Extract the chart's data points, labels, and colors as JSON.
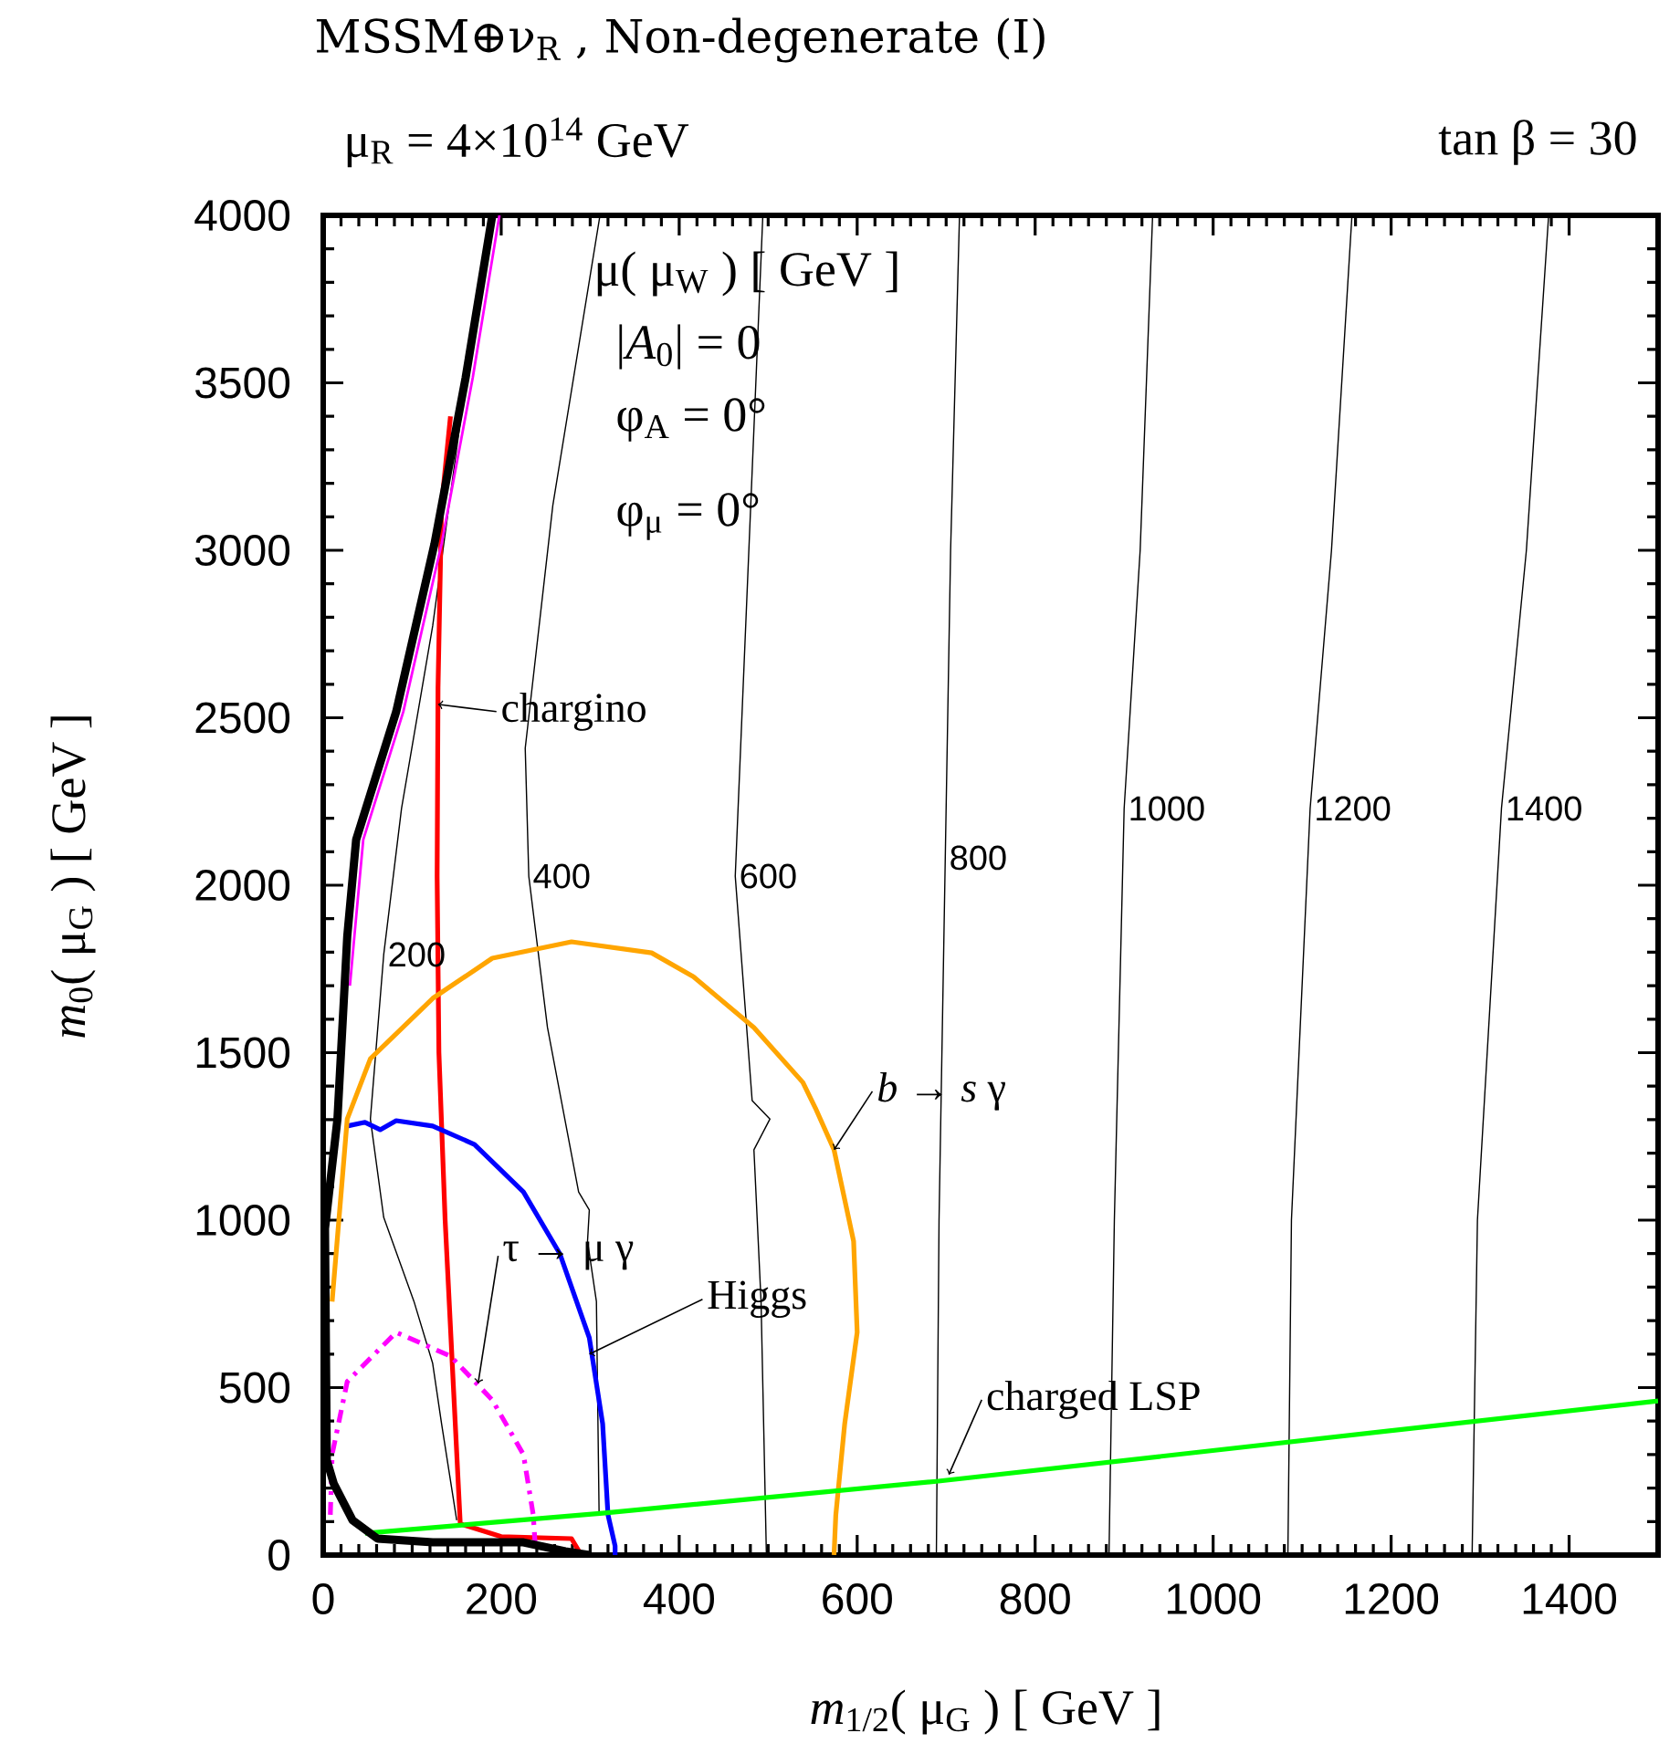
{
  "chart_data": {
    "type": "line",
    "title": "MSSM⊕ν$_{R}$ , Non-degenerate (I)",
    "subtitle": "μ$_{R}$ = 4×10$^{14}$ GeV",
    "xlabel": "*m*$_{1/2}$( μ$_{G}$ ) [ GeV ]",
    "ylabel": "*m*$_{0}$( μ$_{G}$ ) [ GeV ]",
    "xlim": [
      0,
      1500
    ],
    "ylim": [
      0,
      4000
    ],
    "xticks": [
      0,
      200,
      400,
      600,
      800,
      1000,
      1200,
      1400
    ],
    "yticks": [
      0,
      500,
      1000,
      1500,
      2000,
      2500,
      3000,
      3500,
      4000
    ],
    "series": [
      {
        "color": "#000000",
        "x": [
          160,
          123,
          88,
          68,
          53,
          68,
          102,
          123,
          133,
          150
        ],
        "values": [
          3500,
          2774,
          2229,
          1793,
          1302,
          1008,
          757,
          572,
          392,
          104
        ]
      },
      {
        "color": "#000000",
        "x": [
          311,
          258,
          227,
          231,
          252,
          287,
          299,
          297,
          307,
          310
        ],
        "values": [
          4000,
          3134,
          2409,
          2027,
          1575,
          1084,
          1030,
          937,
          757,
          125
        ]
      },
      {
        "color": "#000000",
        "x": [
          494,
          463,
          482,
          502,
          484,
          492,
          498
        ],
        "values": [
          4000,
          2027,
          1357,
          1302,
          1210,
          757,
          0
        ]
      },
      {
        "color": "#000000",
        "x": [
          715,
          705,
          699,
          692,
          689
        ],
        "values": [
          4000,
          3000,
          2082,
          1000,
          0
        ]
      },
      {
        "color": "#000000",
        "x": [
          932,
          918,
          900,
          889,
          883
        ],
        "values": [
          4000,
          3000,
          2229,
          1000,
          0
        ]
      },
      {
        "color": "#000000",
        "x": [
          1156,
          1133,
          1109,
          1088,
          1084
        ],
        "values": [
          4000,
          3000,
          2229,
          1000,
          0
        ]
      },
      {
        "color": "#000000",
        "x": [
          1377,
          1352,
          1324,
          1297,
          1291
        ],
        "values": [
          4000,
          3000,
          2229,
          1000,
          0
        ]
      },
      {
        "color": "#ff0000",
        "x": [
          143,
          133,
          129,
          128,
          130,
          137,
          145,
          154,
          200,
          279,
          290
        ],
        "values": [
          3400,
          3134,
          2589,
          2027,
          1500,
          1000,
          572,
          93,
          55,
          49,
          0
        ]
      },
      {
        "color": "#0000ff",
        "x": [
          27,
          47,
          64,
          82,
          123,
          170,
          225,
          266,
          299,
          314,
          320,
          328,
          328
        ],
        "values": [
          1281,
          1292,
          1270,
          1297,
          1281,
          1226,
          1084,
          899,
          649,
          392,
          120,
          27,
          0
        ]
      },
      {
        "color": "#ffa500",
        "x": [
          10,
          27,
          53,
          123,
          190,
          279,
          369,
          416,
          484,
          539,
          553,
          574,
          596,
          600,
          586,
          576,
          574
        ],
        "values": [
          757,
          1302,
          1482,
          1662,
          1782,
          1831,
          1798,
          1727,
          1575,
          1411,
          1335,
          1210,
          937,
          665,
          392,
          120,
          0
        ]
      },
      {
        "color": "#ff00ff",
        "line_style": "dashdotted",
        "x": [
          8,
          10,
          27,
          82,
          143,
          190,
          225,
          236,
          238
        ],
        "values": [
          120,
          300,
          518,
          665,
          594,
          463,
          300,
          120,
          38
        ]
      },
      {
        "color": "#ff00ff",
        "x": [
          198,
          168,
          133,
          90,
          45,
          35,
          30
        ],
        "values": [
          4000,
          3515,
          3019,
          2518,
          2136,
          1847,
          1700
        ]
      },
      {
        "color": "#00ff00",
        "x": [
          47,
          314,
          689,
          1500
        ],
        "values": [
          65,
          125,
          220,
          460
        ]
      },
      {
        "color": "#000000",
        "x": [
          190,
          160,
          125,
          82,
          37,
          27,
          16,
          2,
          4,
          12,
          33,
          61,
          123,
          225,
          272,
          299
        ],
        "values": [
          4000,
          3515,
          3019,
          2518,
          2136,
          1847,
          1302,
          975,
          283,
          212,
          104,
          49,
          38,
          38,
          11,
          0
        ]
      }
    ],
    "annotations": [
      "tan β = 30",
      "μ( μ$_{W}$ ) [ GeV ]",
      "|*A*$_{0}$| = 0",
      "φ$_{A}$ = 0°",
      "φ$_{μ}$ = 0°",
      {
        "text": "200",
        "x": 68,
        "y": 1793
      },
      {
        "text": "400",
        "x": 231,
        "y": 2027
      },
      {
        "text": "600",
        "x": 463,
        "y": 2027
      },
      {
        "text": "800",
        "x": 699,
        "y": 2082
      },
      {
        "text": "1000",
        "x": 900,
        "y": 2229
      },
      {
        "text": "1200",
        "x": 1109,
        "y": 2229
      },
      {
        "text": "1400",
        "x": 1324,
        "y": 2229
      },
      {
        "text": "chargino",
        "x": 129,
        "y": 2540
      },
      {
        "text": "Higgs",
        "x": 299,
        "y": 600
      },
      {
        "text": "*b* → *s* γ",
        "x": 574,
        "y": 1210
      },
      {
        "text": "τ → μ γ",
        "x": 174,
        "y": 512
      },
      {
        "text": "charged LSP",
        "x": 703,
        "y": 240
      }
    ]
  }
}
